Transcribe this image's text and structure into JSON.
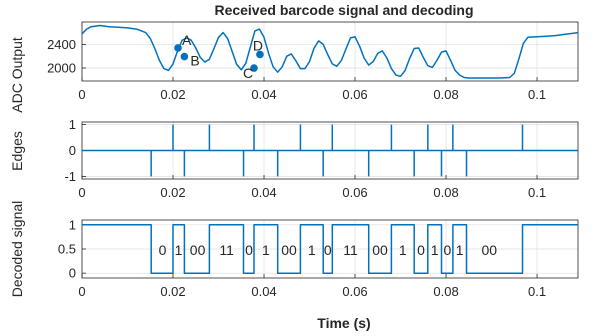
{
  "chart_data": [
    {
      "id": "adc",
      "type": "line",
      "title": "Received barcode signal and decoding",
      "ylabel": "ADC Output",
      "xlabel": "",
      "xlim": [
        0,
        0.109
      ],
      "ylim": [
        1780,
        2780
      ],
      "yticks": [
        2000,
        2400
      ],
      "ytick_labels": [
        "2000",
        "2400"
      ],
      "xticks": [
        0,
        0.02,
        0.04,
        0.06,
        0.08,
        0.1
      ],
      "xtick_labels": [
        "0",
        "0.02",
        "0.04",
        "0.06",
        "0.08",
        "0.1"
      ],
      "grid": true,
      "series": [
        {
          "x": [
            0,
            0.001,
            0.002,
            0.004,
            0.006,
            0.008,
            0.01,
            0.012,
            0.014,
            0.015,
            0.016,
            0.017,
            0.018,
            0.019,
            0.02,
            0.021,
            0.022,
            0.023,
            0.024,
            0.025,
            0.026,
            0.027,
            0.028,
            0.029,
            0.03,
            0.031,
            0.032,
            0.033,
            0.034,
            0.035,
            0.036,
            0.037,
            0.038,
            0.039,
            0.04,
            0.041,
            0.042,
            0.043,
            0.044,
            0.045,
            0.046,
            0.047,
            0.048,
            0.049,
            0.05,
            0.051,
            0.052,
            0.053,
            0.054,
            0.055,
            0.056,
            0.057,
            0.058,
            0.059,
            0.06,
            0.061,
            0.062,
            0.063,
            0.064,
            0.065,
            0.066,
            0.067,
            0.068,
            0.069,
            0.07,
            0.071,
            0.072,
            0.073,
            0.074,
            0.075,
            0.076,
            0.077,
            0.078,
            0.079,
            0.08,
            0.081,
            0.082,
            0.083,
            0.084,
            0.085,
            0.086,
            0.088,
            0.09,
            0.092,
            0.094,
            0.095,
            0.096,
            0.097,
            0.098,
            0.1,
            0.102,
            0.104,
            0.106,
            0.108,
            0.109
          ],
          "y": [
            2580,
            2660,
            2700,
            2720,
            2700,
            2690,
            2680,
            2660,
            2600,
            2500,
            2330,
            2130,
            1990,
            1960,
            2070,
            2290,
            2470,
            2510,
            2470,
            2340,
            2180,
            2100,
            2150,
            2330,
            2520,
            2600,
            2500,
            2280,
            2060,
            1970,
            2080,
            2360,
            2630,
            2660,
            2520,
            2250,
            2020,
            1930,
            2020,
            2200,
            2240,
            2120,
            1990,
            1990,
            2110,
            2340,
            2460,
            2400,
            2230,
            2070,
            2030,
            2130,
            2320,
            2510,
            2530,
            2370,
            2170,
            2050,
            2110,
            2250,
            2290,
            2170,
            1990,
            1880,
            1860,
            1960,
            2160,
            2330,
            2340,
            2180,
            2040,
            2010,
            2130,
            2270,
            2290,
            2130,
            1960,
            1880,
            1840,
            1830,
            1830,
            1830,
            1830,
            1830,
            1840,
            1910,
            2150,
            2420,
            2520,
            2530,
            2540,
            2550,
            2570,
            2590,
            2600
          ]
        }
      ],
      "annotations": [
        {
          "label": "A",
          "x": 0.0211,
          "y": 2340
        },
        {
          "label": "B",
          "x": 0.0225,
          "y": 2195
        },
        {
          "label": "C",
          "x": 0.0378,
          "y": 2000
        },
        {
          "label": "D",
          "x": 0.0391,
          "y": 2230
        }
      ]
    },
    {
      "id": "edges",
      "type": "line",
      "title": "",
      "ylabel": "Edges",
      "xlabel": "",
      "xlim": [
        0,
        0.109
      ],
      "ylim": [
        -1.1,
        1.1
      ],
      "yticks": [
        -1,
        0,
        1
      ],
      "ytick_labels": [
        "-1",
        "0",
        "1"
      ],
      "xticks": [
        0,
        0.02,
        0.04,
        0.06,
        0.08,
        0.1
      ],
      "xtick_labels": [
        "0",
        "0.02",
        "0.04",
        "0.06",
        "0.08",
        "0.1"
      ],
      "grid": true,
      "series": [
        {
          "x": [
            0.0152,
            0.02,
            0.0225,
            0.028,
            0.0355,
            0.0378,
            0.043,
            0.048,
            0.053,
            0.055,
            0.063,
            0.068,
            0.073,
            0.076,
            0.079,
            0.0815,
            0.0845,
            0.0968
          ],
          "y": [
            -1,
            1,
            -1,
            1,
            -1,
            1,
            -1,
            1,
            -1,
            1,
            -1,
            1,
            -1,
            1,
            -1,
            1,
            -1,
            1
          ]
        }
      ]
    },
    {
      "id": "decoded",
      "type": "line",
      "title": "",
      "ylabel": "Decoded signal",
      "xlabel": "Time (s)",
      "xlim": [
        0,
        0.109
      ],
      "ylim": [
        -0.1,
        1.1
      ],
      "yticks": [
        0,
        0.5,
        1
      ],
      "ytick_labels": [
        "0",
        "0.5",
        "1"
      ],
      "xticks": [
        0,
        0.02,
        0.04,
        0.06,
        0.08,
        0.1
      ],
      "xtick_labels": [
        "0",
        "0.02",
        "0.04",
        "0.06",
        "0.08",
        "0.1"
      ],
      "grid": true,
      "series": [
        {
          "x": [
            0,
            0.0152,
            0.0152,
            0.02,
            0.02,
            0.0225,
            0.0225,
            0.028,
            0.028,
            0.0355,
            0.0355,
            0.0378,
            0.0378,
            0.043,
            0.043,
            0.048,
            0.048,
            0.053,
            0.053,
            0.055,
            0.055,
            0.063,
            0.063,
            0.068,
            0.068,
            0.073,
            0.073,
            0.076,
            0.076,
            0.079,
            0.079,
            0.0815,
            0.0815,
            0.0845,
            0.0845,
            0.0968,
            0.0968,
            0.109
          ],
          "y": [
            1,
            1,
            0,
            0,
            1,
            1,
            0,
            0,
            1,
            1,
            0,
            0,
            1,
            1,
            0,
            0,
            1,
            1,
            0,
            0,
            1,
            1,
            0,
            0,
            1,
            1,
            0,
            0,
            1,
            1,
            0,
            0,
            1,
            1,
            0,
            0,
            1,
            1
          ]
        }
      ],
      "bit_labels": [
        {
          "text": "0",
          "x": 0.0177
        },
        {
          "text": "1",
          "x": 0.0212
        },
        {
          "text": "00",
          "x": 0.0254
        },
        {
          "text": "11",
          "x": 0.0318
        },
        {
          "text": "0",
          "x": 0.0367
        },
        {
          "text": "1",
          "x": 0.0404
        },
        {
          "text": "00",
          "x": 0.0455
        },
        {
          "text": "1",
          "x": 0.0505
        },
        {
          "text": "0",
          "x": 0.054
        },
        {
          "text": "11",
          "x": 0.059
        },
        {
          "text": "00",
          "x": 0.0655
        },
        {
          "text": "1",
          "x": 0.0705
        },
        {
          "text": "0",
          "x": 0.0745
        },
        {
          "text": "1",
          "x": 0.0775
        },
        {
          "text": "0",
          "x": 0.0803
        },
        {
          "text": "1",
          "x": 0.083
        },
        {
          "text": "00",
          "x": 0.0895
        }
      ]
    }
  ],
  "colors": {
    "line": "#0072bd",
    "axis": "#262626",
    "grid": "#dedede"
  }
}
